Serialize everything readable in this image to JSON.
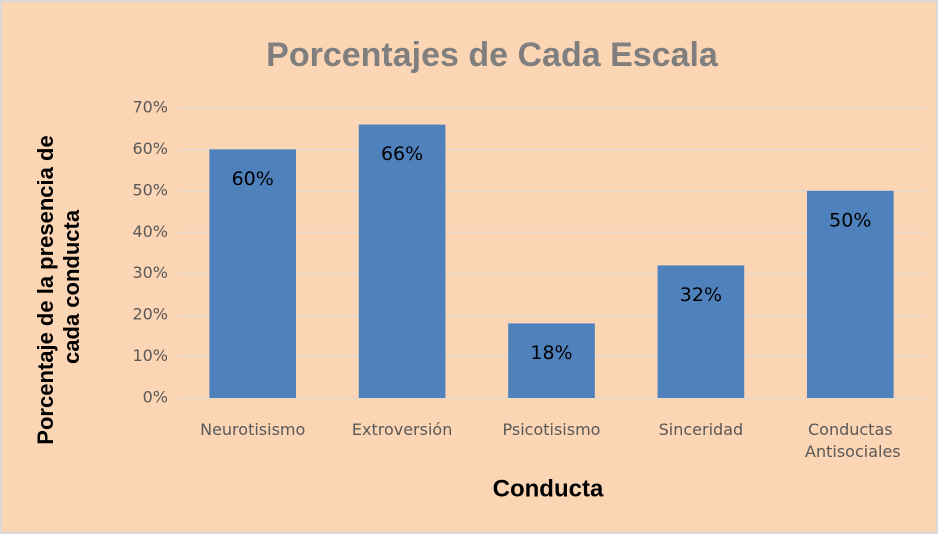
{
  "chart_data": {
    "type": "bar",
    "title": "Porcentajes de Cada Escala",
    "xlabel": "Conducta",
    "ylabel": "Porcentaje de la presencia de cada conducta",
    "categories": [
      "Neurotisismo",
      "Extroversión",
      "Psicotisismo",
      "Sinceridad",
      "Conductas Antisociales"
    ],
    "values": [
      60,
      66,
      18,
      32,
      50
    ],
    "value_labels": [
      "60%",
      "66%",
      "18%",
      "32%",
      "50%"
    ],
    "color": "#4f81bd",
    "ylim": [
      0,
      70
    ],
    "yticks": [
      {
        "value": 0,
        "label": "0%"
      },
      {
        "value": 10,
        "label": "10%"
      },
      {
        "value": 20,
        "label": "20%"
      },
      {
        "value": 30,
        "label": "30%"
      },
      {
        "value": 40,
        "label": "40%"
      },
      {
        "value": 50,
        "label": "50%"
      },
      {
        "value": 60,
        "label": "60%"
      },
      {
        "value": 70,
        "label": "70%"
      }
    ],
    "grid": true
  }
}
